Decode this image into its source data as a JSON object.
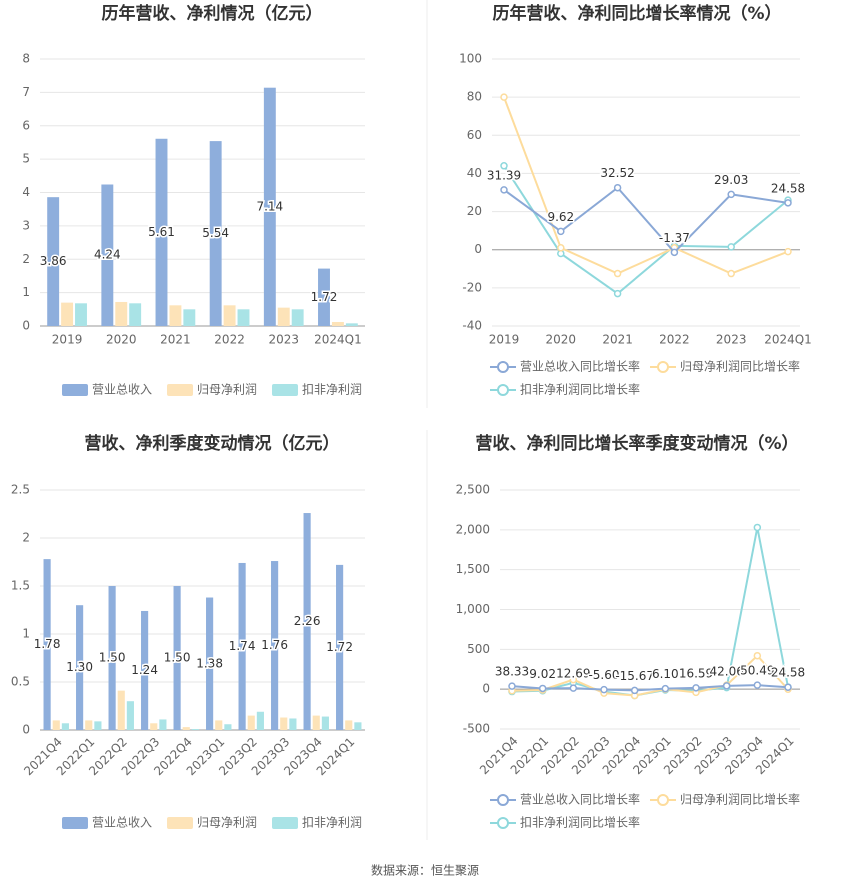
{
  "chart_data": [
    {
      "type": "bar",
      "title": "历年营收、净利情况（亿元）",
      "categories": [
        "2019",
        "2020",
        "2021",
        "2022",
        "2023",
        "2024Q1"
      ],
      "series": [
        {
          "name": "营业总收入",
          "color": "#8eaedc",
          "values": [
            3.86,
            4.24,
            5.61,
            5.54,
            7.14,
            1.72
          ],
          "labels": true
        },
        {
          "name": "归母净利润",
          "color": "#fde3b8",
          "values": [
            0.7,
            0.72,
            0.62,
            0.62,
            0.55,
            0.12
          ]
        },
        {
          "name": "扣非净利润",
          "color": "#a9e3e6",
          "values": [
            0.68,
            0.68,
            0.5,
            0.5,
            0.5,
            0.08
          ]
        }
      ],
      "ylim": [
        0,
        8
      ],
      "yticks": [
        0,
        1,
        2,
        3,
        4,
        5,
        6,
        7,
        8
      ],
      "grid": true,
      "legend": "bottom"
    },
    {
      "type": "line",
      "title": "历年营收、净利同比增长率情况（%）",
      "categories": [
        "2019",
        "2020",
        "2021",
        "2022",
        "2023",
        "2024Q1"
      ],
      "series": [
        {
          "name": "营业总收入同比增长率",
          "color": "#8aa8d6",
          "values": [
            31.39,
            9.62,
            32.52,
            -1.37,
            29.03,
            24.58
          ],
          "labels": true
        },
        {
          "name": "归母净利润同比增长率",
          "color": "#fddc9c",
          "values": [
            80,
            1,
            -12.5,
            1,
            -12.5,
            -1
          ]
        },
        {
          "name": "扣非净利润同比增长率",
          "color": "#8ed8dc",
          "values": [
            44,
            -2,
            -23,
            2,
            1.5,
            26
          ]
        }
      ],
      "ylim": [
        -40,
        100
      ],
      "yticks": [
        -40,
        -20,
        0,
        20,
        40,
        60,
        80,
        100
      ],
      "grid": true,
      "legend": "bottom"
    },
    {
      "type": "bar",
      "title": "营收、净利季度变动情况（亿元）",
      "categories": [
        "2021Q4",
        "2022Q1",
        "2022Q2",
        "2022Q3",
        "2022Q4",
        "2023Q1",
        "2023Q2",
        "2023Q3",
        "2023Q4",
        "2024Q1"
      ],
      "series": [
        {
          "name": "营业总收入",
          "color": "#8eaedc",
          "values": [
            1.78,
            1.3,
            1.5,
            1.24,
            1.5,
            1.38,
            1.74,
            1.76,
            2.26,
            1.72
          ],
          "value_labels": [
            "1.78",
            "1.30",
            "1.50",
            "1.24",
            "1.50",
            "1.38",
            "1.74",
            "1.76",
            "2.26",
            "1.72"
          ],
          "labels": true
        },
        {
          "name": "归母净利润",
          "color": "#fde3b8",
          "values": [
            0.1,
            0.1,
            0.41,
            0.07,
            0.03,
            0.1,
            0.15,
            0.13,
            0.15,
            0.1
          ]
        },
        {
          "name": "扣非净利润",
          "color": "#a9e3e6",
          "values": [
            0.07,
            0.09,
            0.3,
            0.11,
            0.01,
            0.06,
            0.19,
            0.12,
            0.14,
            0.08
          ]
        }
      ],
      "ylim": [
        0,
        2.5
      ],
      "yticks": [
        0,
        0.5,
        1,
        1.5,
        2,
        2.5
      ],
      "grid": true,
      "legend": "bottom"
    },
    {
      "type": "line",
      "title": "营收、净利同比增长率季度变动情况（%）",
      "categories": [
        "2021Q4",
        "2022Q1",
        "2022Q2",
        "2022Q3",
        "2022Q4",
        "2023Q1",
        "2023Q2",
        "2023Q3",
        "2023Q4",
        "2024Q1"
      ],
      "series": [
        {
          "name": "营业总收入同比增长率",
          "color": "#8aa8d6",
          "values": [
            38.33,
            9.02,
            12.69,
            -5.6,
            -15.67,
            6.1,
            16.59,
            42.06,
            50.49,
            24.58
          ],
          "value_labels": [
            "38.33",
            "9.02",
            "12.69",
            "-5.60",
            "-15.67",
            "6.10",
            "16.59",
            "42.06",
            "50.49",
            "24.58"
          ],
          "labels": true
        },
        {
          "name": "归母净利润同比增长率",
          "color": "#fddc9c",
          "values": [
            -20,
            -10,
            120,
            -50,
            -80,
            0,
            -40,
            50,
            420,
            -1
          ]
        },
        {
          "name": "扣非净利润同比增长率",
          "color": "#8ed8dc",
          "values": [
            -30,
            -20,
            80,
            -30,
            -80,
            -10,
            -20,
            20,
            2030,
            26
          ]
        }
      ],
      "ylim": [
        -500,
        2500
      ],
      "yticks": [
        -500,
        0,
        500,
        {
          "value": 1000,
          "label": "1,000"
        },
        {
          "value": 1500,
          "label": "1,500"
        },
        {
          "value": 2000,
          "label": "2,000"
        },
        {
          "value": 2500,
          "label": "2,500"
        }
      ],
      "grid": true,
      "legend": "bottom"
    }
  ],
  "source": "数据来源：恒生聚源"
}
